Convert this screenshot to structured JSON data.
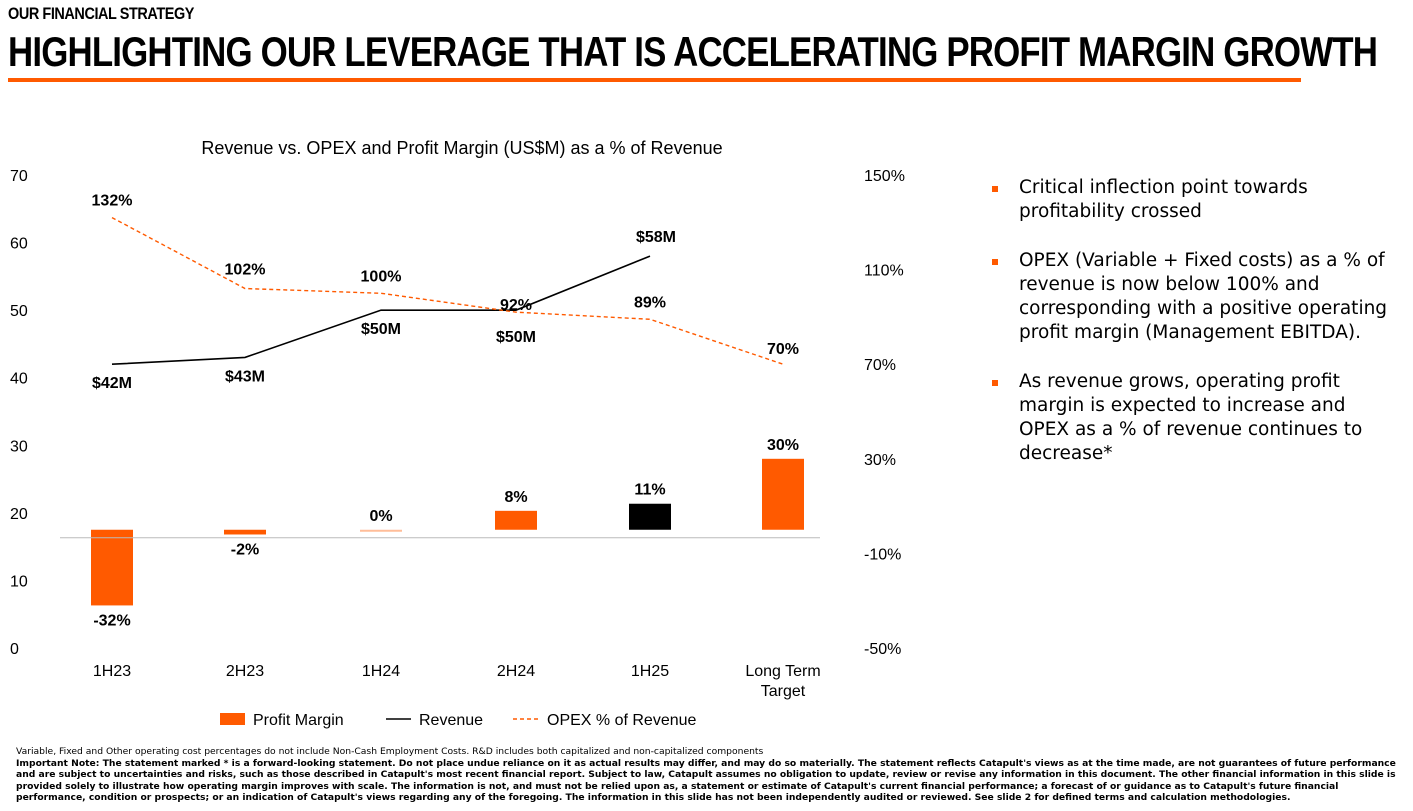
{
  "header": {
    "kicker": "OUR FINANCIAL STRATEGY",
    "title": "HIGHLIGHTING OUR LEVERAGE THAT IS ACCELERATING PROFIT MARGIN GROWTH"
  },
  "colors": {
    "accent": "#FF5A00",
    "highlight_bar": "#000000",
    "revenue_line": "#000000",
    "opex_line": "#FF5A00"
  },
  "chart_data": {
    "type": "bar+line",
    "title": "Revenue vs. OPEX and Profit Margin (US$M) as a % of Revenue",
    "categories": [
      "1H23",
      "2H23",
      "1H24",
      "2H24",
      "1H25",
      "Long Term Target"
    ],
    "left_axis": {
      "ylim": [
        0,
        70
      ],
      "ticks": [
        "0",
        "10",
        "20",
        "30",
        "40",
        "50",
        "60",
        "70"
      ]
    },
    "right_axis": {
      "ylim": [
        -50,
        150
      ],
      "ticks": [
        "-50%",
        "-10%",
        "30%",
        "70%",
        "110%",
        "150%"
      ]
    },
    "series": [
      {
        "name": "Profit Margin",
        "type": "bar",
        "axis": "right",
        "values": [
          -32,
          -2,
          0,
          8,
          11,
          30
        ],
        "labels": [
          "-32%",
          "-2%",
          "0%",
          "8%",
          "11%",
          "30%"
        ]
      },
      {
        "name": "Revenue",
        "type": "line",
        "axis": "left",
        "values": [
          42,
          43,
          50,
          50,
          58,
          null
        ],
        "labels": [
          "$42M",
          "$43M",
          "$50M",
          "$50M",
          "$58M",
          ""
        ]
      },
      {
        "name": "OPEX % of Revenue",
        "type": "line",
        "style": "dashed",
        "axis": "right",
        "values": [
          132,
          102,
          100,
          92,
          89,
          70
        ],
        "labels": [
          "132%",
          "102%",
          "100%",
          "92%",
          "89%",
          "70%"
        ]
      }
    ],
    "legend": "bottom",
    "grid": false
  },
  "bullets": [
    "Critical inflection point towards profitability crossed",
    "OPEX (Variable + Fixed costs) as a % of revenue is now below 100% and corresponding with a positive operating profit margin (Management EBITDA).",
    "As revenue grows, operating profit margin is expected to increase and OPEX as a % of revenue continues to decrease*"
  ],
  "footer": {
    "note": "Variable, Fixed and Other operating cost percentages do not include Non-Cash Employment Costs. R&D includes both capitalized and non-capitalized components",
    "important": "Important Note: The statement marked * is a forward-looking statement. Do not place undue reliance on it as actual results may differ, and may do so materially. The statement reflects Catapult's views as at the time made, are not guarantees of future performance and are subject to uncertainties and risks, such as those described in Catapult's most recent financial report. Subject to law, Catapult assumes no obligation to update, review or revise any information in this document. The other financial information in this slide is provided solely to illustrate how operating margin improves with scale. The information is not, and must not be relied upon as, a statement or estimate of Catapult's current financial performance; a forecast of or guidance as to Catapult's future financial performance, condition or prospects; or an indication of Catapult's views regarding any of the foregoing. The information in this slide has not been independently audited or reviewed. See slide 2 for defined terms and calculation methodologies."
  }
}
